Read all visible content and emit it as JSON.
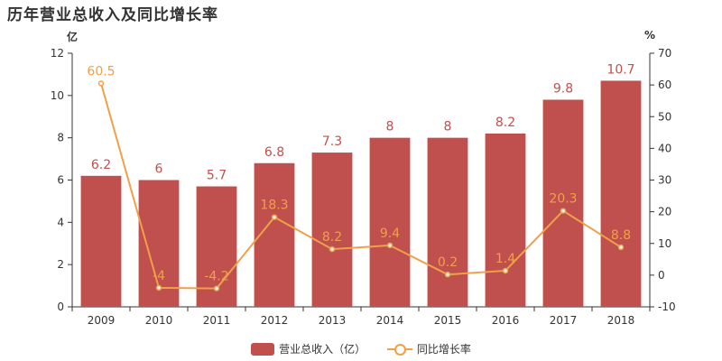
{
  "title": "历年营业总收入及同比增长率",
  "units": {
    "left": "亿",
    "right": "%"
  },
  "legend": {
    "bar_label": "营业总收入（亿）",
    "line_label": "同比增长率"
  },
  "colors": {
    "bar": "#c0504d",
    "line": "#f0a048",
    "axis": "#333333"
  },
  "chart_data": {
    "type": "bar",
    "categories": [
      "2009",
      "2010",
      "2011",
      "2012",
      "2013",
      "2014",
      "2015",
      "2016",
      "2017",
      "2018"
    ],
    "series": [
      {
        "name": "营业总收入（亿）",
        "type": "bar",
        "axis": "left",
        "values": [
          6.2,
          6,
          5.7,
          6.8,
          7.3,
          8,
          8,
          8.2,
          9.8,
          10.7
        ]
      },
      {
        "name": "同比增长率",
        "type": "line",
        "axis": "right",
        "values": [
          60.5,
          -4,
          -4.2,
          18.3,
          8.2,
          9.4,
          0.2,
          1.4,
          20.3,
          8.8
        ]
      }
    ],
    "ylim_left": [
      0,
      12
    ],
    "yticks_left": [
      0,
      2,
      4,
      6,
      8,
      10,
      12
    ],
    "ylim_right": [
      -10,
      70
    ],
    "yticks_right": [
      -10,
      0,
      10,
      20,
      30,
      40,
      50,
      60,
      70
    ],
    "grid": false,
    "legend_position": "bottom"
  }
}
